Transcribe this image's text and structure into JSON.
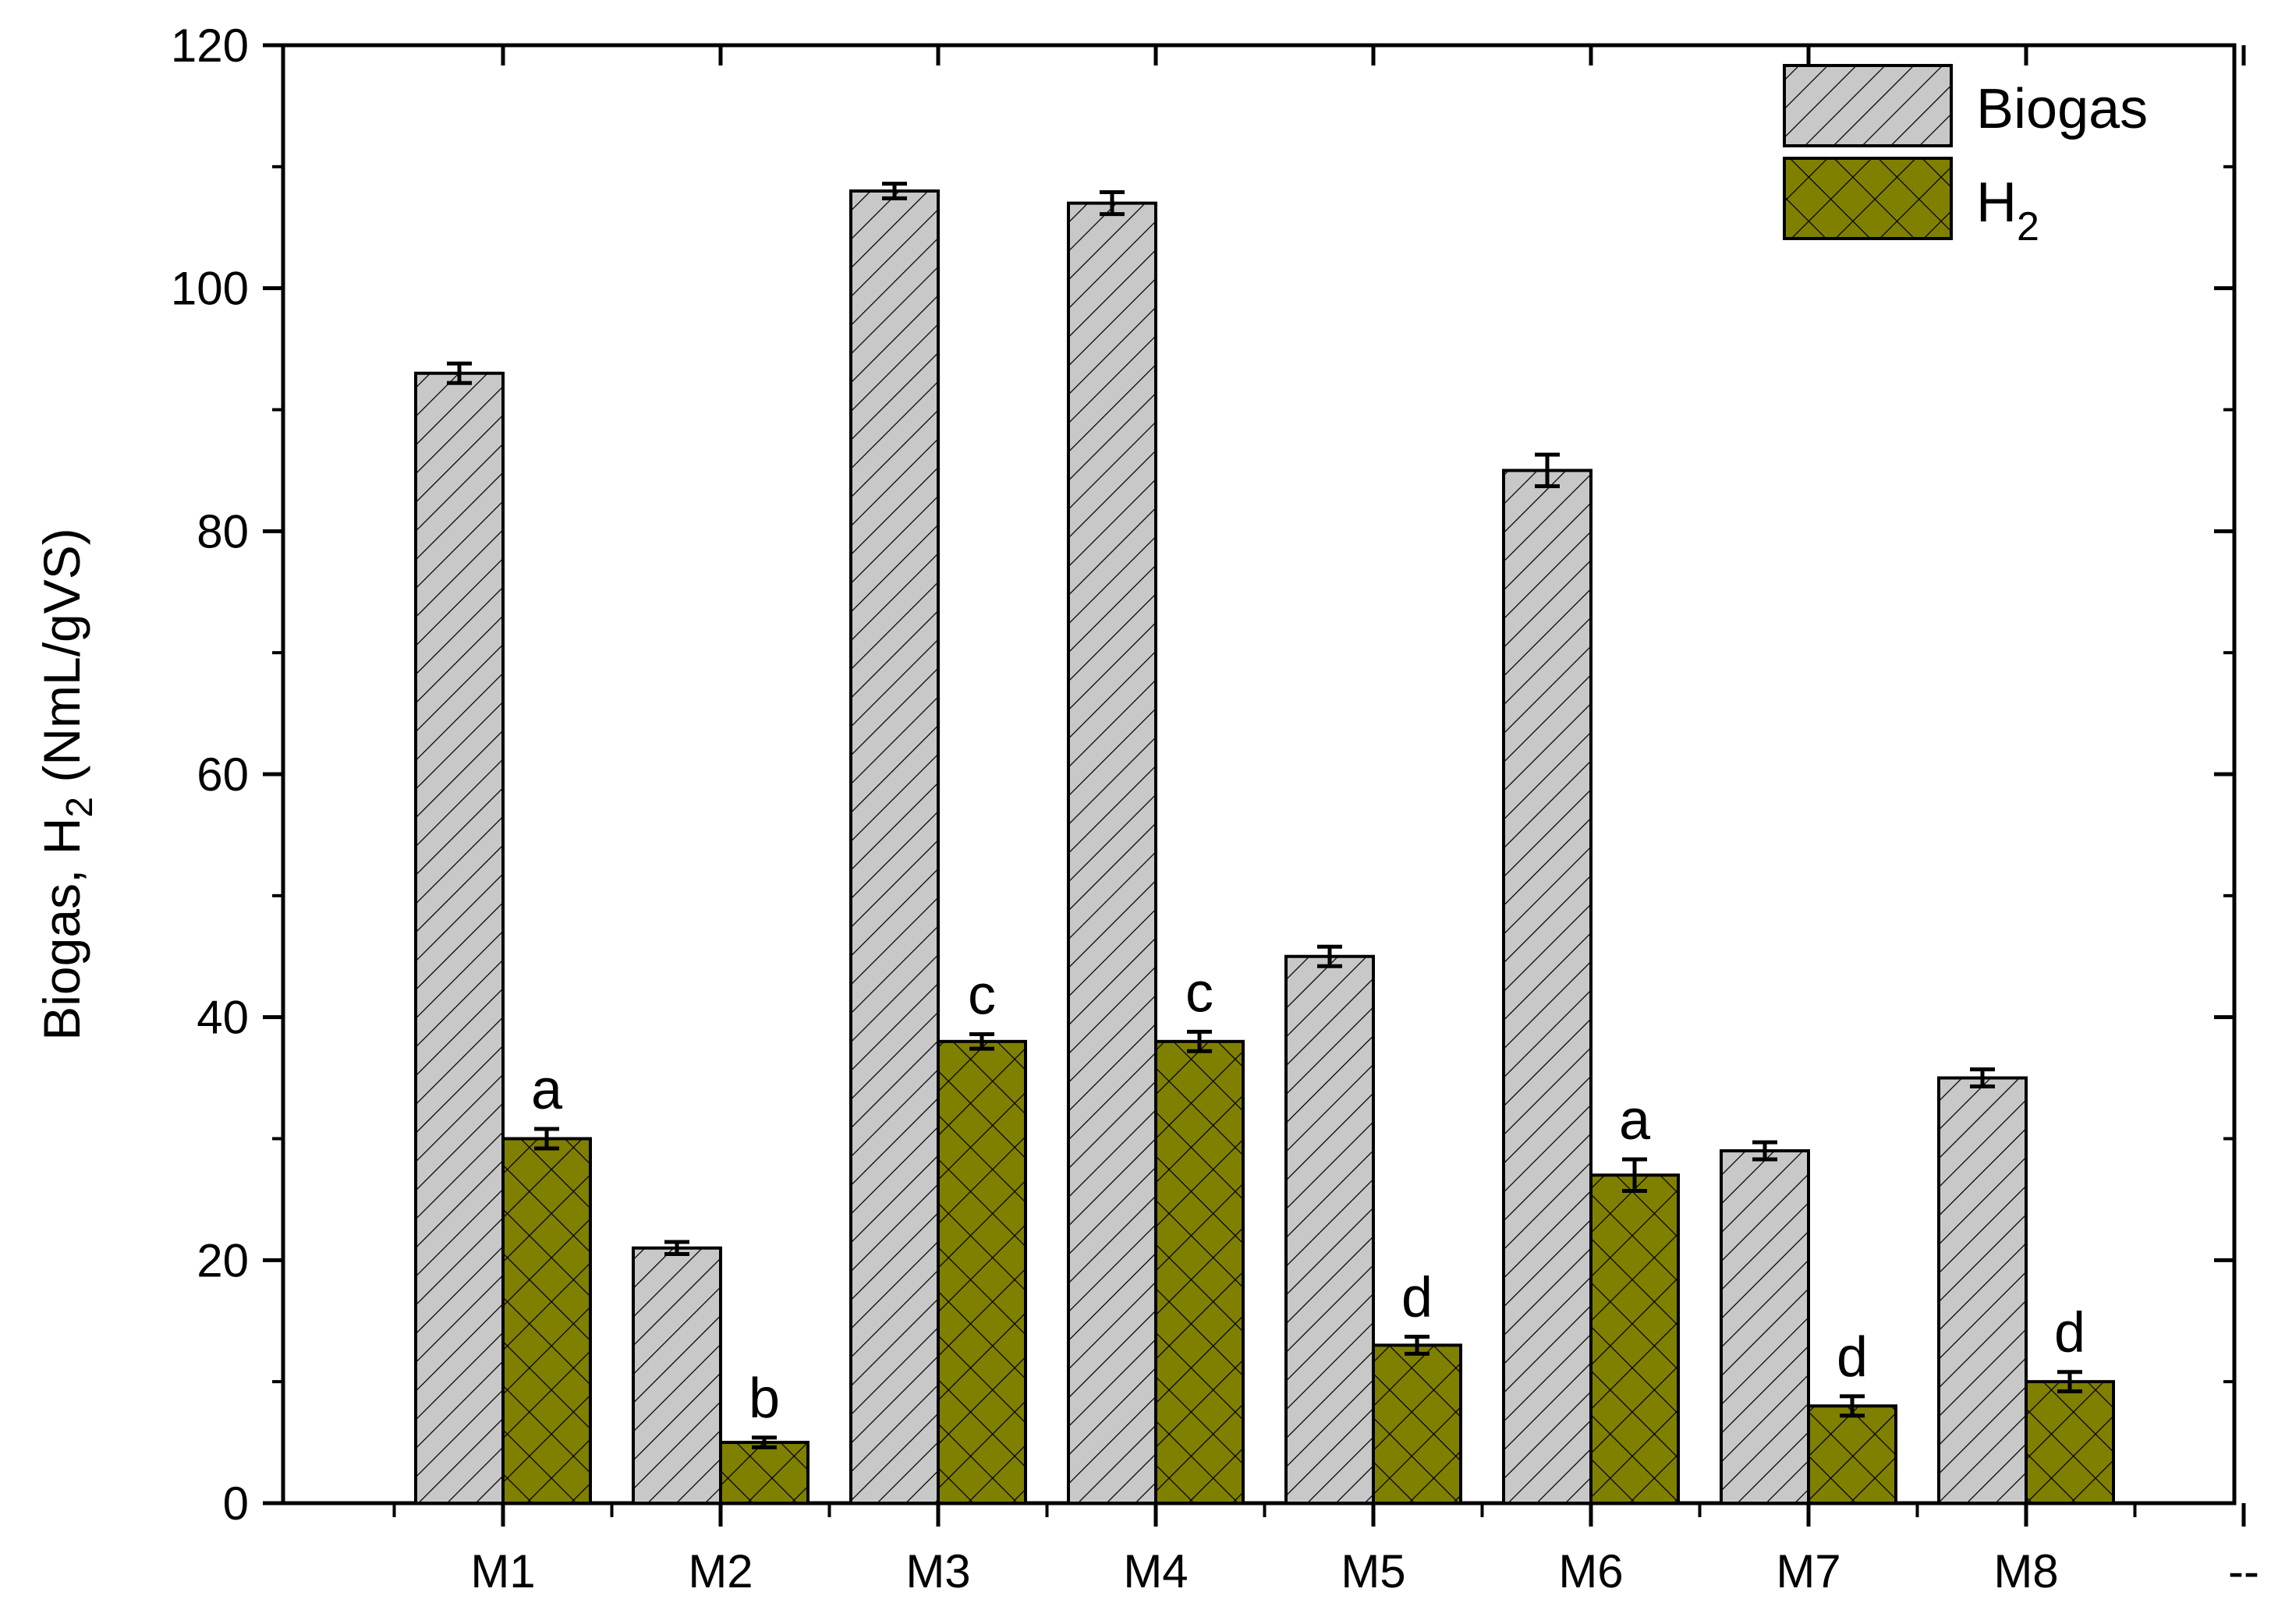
{
  "chart_data": {
    "type": "bar",
    "categories": [
      "M1",
      "M2",
      "M3",
      "M4",
      "M5",
      "M6",
      "M7",
      "M8"
    ],
    "series": [
      {
        "name": "Biogas",
        "values": [
          93,
          21,
          108,
          107,
          45,
          85,
          29,
          35
        ],
        "errors": [
          0.8,
          0.5,
          0.6,
          0.9,
          0.8,
          1.3,
          0.7,
          0.7
        ],
        "color": "#c8c8c8",
        "pattern": "diagonal-hatch"
      },
      {
        "name": "H",
        "name_subscript": "2",
        "values": [
          30,
          5,
          38,
          38,
          13,
          27,
          8,
          10
        ],
        "errors": [
          0.8,
          0.4,
          0.6,
          0.8,
          0.7,
          1.3,
          0.8,
          0.8
        ],
        "significance": [
          "a",
          "b",
          "c",
          "c",
          "d",
          "a",
          "d",
          "d"
        ],
        "color": "#808000",
        "pattern": "cross-hatch"
      }
    ],
    "extra_x_tick_label": "--",
    "ylabel": "Biogas, H",
    "ylabel_subscript": "2",
    "ylabel_suffix": " (NmL/gVS)",
    "xlabel": "",
    "ylim": [
      0,
      120
    ],
    "yticks": [
      0,
      20,
      40,
      60,
      80,
      100,
      120
    ],
    "legend_position": "top-right",
    "grid": false
  }
}
